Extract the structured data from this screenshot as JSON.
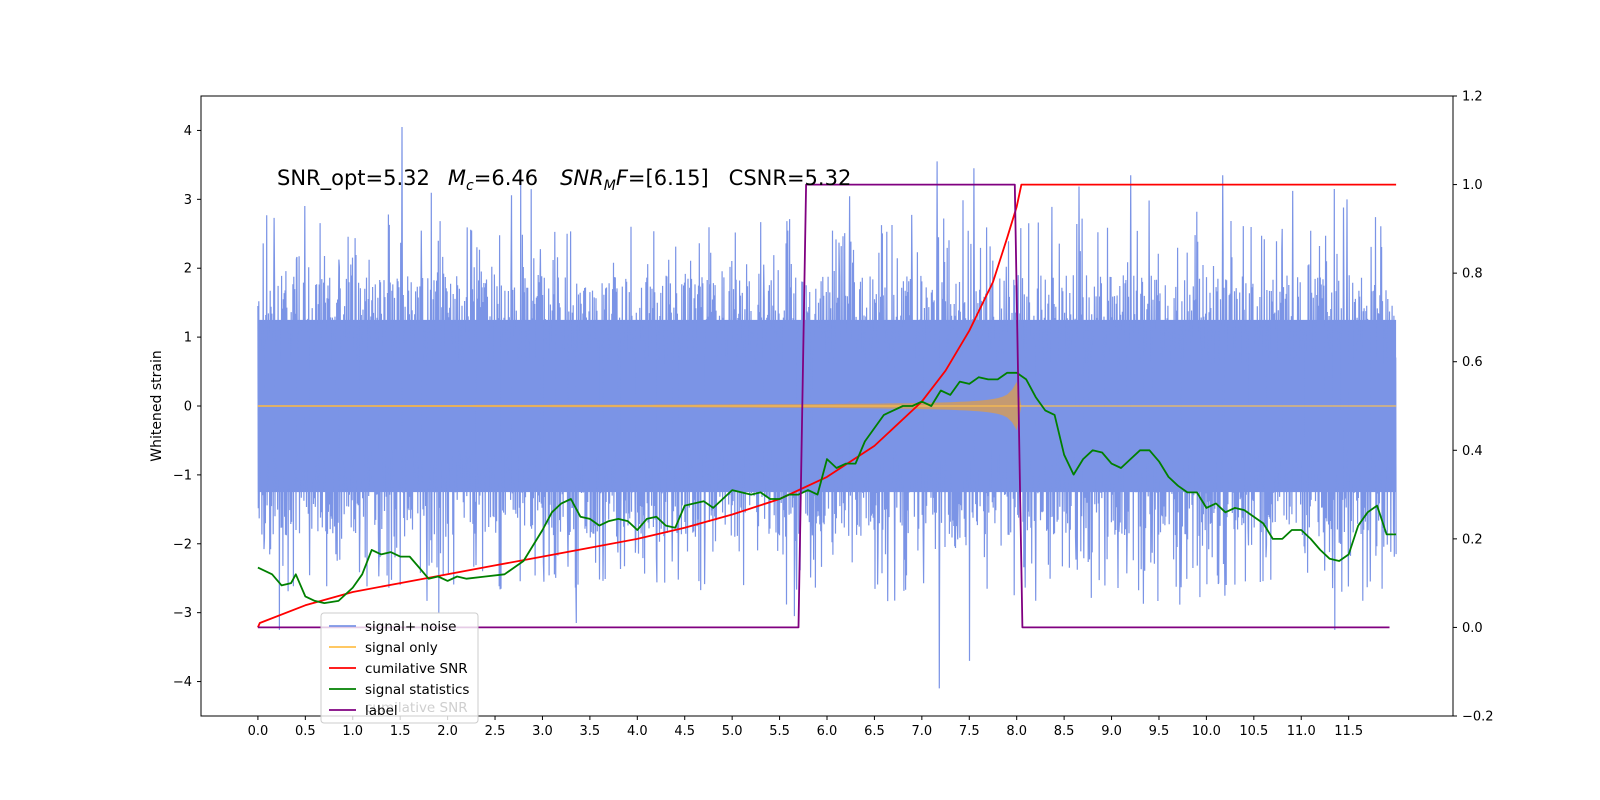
{
  "chart_data": {
    "type": "line",
    "ylabel": "Whitened strain",
    "annotation": {
      "snr_opt": "SNR_opt=5.32",
      "mc_sym": "M",
      "mc_sub": "c",
      "mc_val": "=6.46",
      "snrmf_sym": "SNR",
      "snrmf_sub": "M",
      "snrmf_f": "F",
      "snrmf_val": "=[6.15]",
      "csnr": "CSNR=5.32"
    },
    "x_ticks": [
      "0.0",
      "0.5",
      "1.0",
      "1.5",
      "2.0",
      "2.5",
      "3.0",
      "3.5",
      "4.0",
      "4.5",
      "5.0",
      "5.5",
      "6.0",
      "6.5",
      "7.0",
      "7.5",
      "8.0",
      "8.5",
      "9.0",
      "9.5",
      "10.0",
      "10.5",
      "11.0",
      "11.5"
    ],
    "y_left_ticks": [
      "4",
      "3",
      "2",
      "1",
      "0",
      "−1",
      "−2",
      "−3",
      "−4"
    ],
    "y_right_ticks": [
      "1.2",
      "1.0",
      "0.8",
      "0.6",
      "0.4",
      "0.2",
      "0.0",
      "−0.2"
    ],
    "xlim": [
      -0.6,
      12.6
    ],
    "ylim_left": [
      -4.5,
      4.5
    ],
    "ylim_right": [
      -0.2,
      1.2
    ],
    "legend": {
      "position": "lower-left",
      "entries": [
        {
          "label": "signal+ noise",
          "color": "#7b94e6"
        },
        {
          "label": "signal only",
          "color": "#ffc14d"
        },
        {
          "label": "cumilative SNR",
          "color": "#ff0000"
        },
        {
          "label": "signal statistics",
          "color": "#008000"
        },
        {
          "label": "label",
          "color": "#800080"
        }
      ],
      "ghost_text": "cumilative SNR"
    },
    "series": [
      {
        "name": "signal+ noise",
        "axis": "left",
        "color": "#7b94e6",
        "x_range": [
          0.0,
          12.0
        ],
        "envelope_upper": 2.3,
        "envelope_lower": -2.3,
        "spikes_x": [
          1.52,
          2.77,
          7.16,
          7.55,
          9.2,
          10.17,
          11.35
        ],
        "spikes_y": [
          4.05,
          3.3,
          3.55,
          3.45,
          3.35,
          3.35,
          3.15
        ],
        "dips_x": [
          0.22,
          1.9,
          3.35,
          5.65,
          7.18,
          7.5,
          11.35
        ],
        "dips_y": [
          -3.25,
          -3.0,
          -3.15,
          -3.05,
          -4.1,
          -3.7,
          -3.25
        ]
      },
      {
        "name": "signal only",
        "axis": "left",
        "color": "#ffc14d",
        "x_range": [
          0.0,
          12.0
        ],
        "chirp_end": 8.0,
        "peak_amplitude": 0.35
      },
      {
        "name": "cumilative SNR",
        "axis": "right",
        "color": "#ff0000",
        "x": [
          0.0,
          0.02,
          0.5,
          1.0,
          1.5,
          2.0,
          2.5,
          3.0,
          3.5,
          4.0,
          4.5,
          5.0,
          5.5,
          6.0,
          6.5,
          7.0,
          7.25,
          7.5,
          7.75,
          7.9,
          8.0,
          8.05,
          12.0
        ],
        "y": [
          0.0,
          0.01,
          0.05,
          0.08,
          0.1,
          0.12,
          0.14,
          0.16,
          0.18,
          0.2,
          0.225,
          0.255,
          0.29,
          0.34,
          0.41,
          0.51,
          0.58,
          0.67,
          0.78,
          0.88,
          0.95,
          1.0,
          1.0
        ]
      },
      {
        "name": "signal statistics",
        "axis": "right",
        "color": "#008000",
        "x": [
          0.0,
          0.15,
          0.25,
          0.35,
          0.4,
          0.5,
          0.6,
          0.7,
          0.85,
          1.0,
          1.1,
          1.2,
          1.3,
          1.4,
          1.5,
          1.6,
          1.7,
          1.8,
          1.9,
          2.0,
          2.1,
          2.2,
          2.4,
          2.6,
          2.8,
          2.9,
          3.0,
          3.1,
          3.2,
          3.3,
          3.4,
          3.5,
          3.6,
          3.7,
          3.8,
          3.9,
          4.0,
          4.1,
          4.2,
          4.3,
          4.4,
          4.5,
          4.6,
          4.7,
          4.8,
          4.9,
          5.0,
          5.1,
          5.2,
          5.3,
          5.4,
          5.5,
          5.6,
          5.7,
          5.8,
          5.9,
          6.0,
          6.1,
          6.2,
          6.3,
          6.4,
          6.5,
          6.6,
          6.7,
          6.8,
          6.9,
          7.0,
          7.1,
          7.2,
          7.3,
          7.4,
          7.5,
          7.6,
          7.7,
          7.8,
          7.9,
          8.0,
          8.1,
          8.2,
          8.3,
          8.4,
          8.5,
          8.6,
          8.7,
          8.8,
          8.9,
          9.0,
          9.1,
          9.2,
          9.3,
          9.4,
          9.5,
          9.6,
          9.7,
          9.8,
          9.9,
          10.0,
          10.1,
          10.2,
          10.3,
          10.4,
          10.5,
          10.6,
          10.7,
          10.8,
          10.9,
          11.0,
          11.1,
          11.2,
          11.3,
          11.4,
          11.5,
          11.6,
          11.7,
          11.8,
          11.9,
          12.0
        ],
        "y": [
          0.135,
          0.12,
          0.095,
          0.1,
          0.12,
          0.07,
          0.06,
          0.055,
          0.06,
          0.09,
          0.12,
          0.175,
          0.165,
          0.17,
          0.16,
          0.16,
          0.135,
          0.11,
          0.115,
          0.105,
          0.115,
          0.11,
          0.115,
          0.12,
          0.15,
          0.185,
          0.22,
          0.26,
          0.28,
          0.29,
          0.25,
          0.245,
          0.23,
          0.24,
          0.245,
          0.24,
          0.22,
          0.245,
          0.25,
          0.23,
          0.225,
          0.275,
          0.28,
          0.285,
          0.27,
          0.29,
          0.31,
          0.305,
          0.3,
          0.305,
          0.29,
          0.29,
          0.3,
          0.3,
          0.31,
          0.3,
          0.38,
          0.36,
          0.37,
          0.37,
          0.42,
          0.45,
          0.48,
          0.49,
          0.5,
          0.5,
          0.51,
          0.5,
          0.535,
          0.525,
          0.555,
          0.55,
          0.565,
          0.56,
          0.56,
          0.575,
          0.575,
          0.56,
          0.52,
          0.49,
          0.48,
          0.39,
          0.345,
          0.38,
          0.4,
          0.395,
          0.37,
          0.36,
          0.38,
          0.4,
          0.4,
          0.375,
          0.34,
          0.32,
          0.305,
          0.305,
          0.27,
          0.28,
          0.26,
          0.27,
          0.265,
          0.25,
          0.235,
          0.2,
          0.2,
          0.22,
          0.22,
          0.2,
          0.175,
          0.155,
          0.15,
          0.165,
          0.23,
          0.26,
          0.275,
          0.21,
          0.21
        ]
      },
      {
        "name": "label",
        "axis": "right",
        "color": "#800080",
        "x": [
          0.0,
          5.7,
          5.78,
          7.98,
          8.06,
          11.93
        ],
        "y": [
          0.0,
          0.0,
          1.0,
          1.0,
          0.0,
          0.0
        ]
      }
    ]
  }
}
